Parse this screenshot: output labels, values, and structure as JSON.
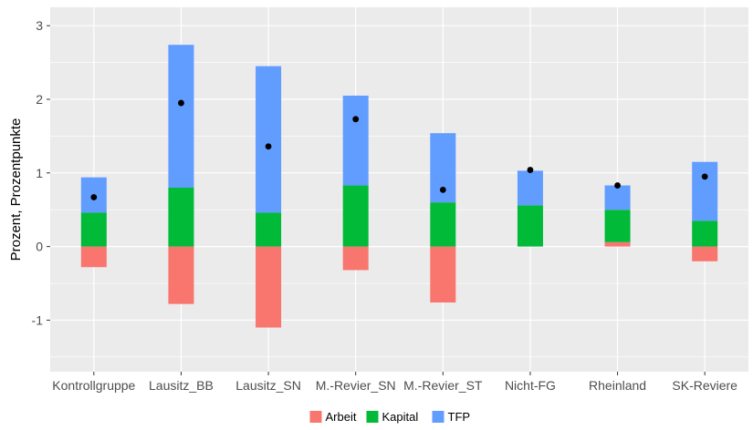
{
  "chart_data": {
    "type": "bar",
    "stacked": true,
    "title": "",
    "xlabel": "",
    "ylabel": "Prozent, Prozentpunkte",
    "ylim": [
      -1.7,
      3.25
    ],
    "yticks": [
      -1,
      0,
      1,
      2,
      3
    ],
    "ytick_labels": [
      "-1",
      "0",
      "1",
      "2",
      "3"
    ],
    "grid": true,
    "legend_position": "bottom",
    "categories": [
      "Kontrollgruppe",
      "Lausitz_BB",
      "Lausitz_SN",
      "M.-Revier_SN",
      "M.-Revier_ST",
      "Nicht-FG",
      "Rheinland",
      "SK-Reviere"
    ],
    "series": [
      {
        "name": "Arbeit",
        "color": "#F8766D",
        "values": [
          -0.28,
          -0.78,
          -1.1,
          -0.32,
          -0.76,
          0.0,
          0.06,
          -0.2
        ]
      },
      {
        "name": "Kapital",
        "color": "#00BA38",
        "values": [
          0.46,
          0.8,
          0.46,
          0.83,
          0.6,
          0.56,
          0.44,
          0.35
        ]
      },
      {
        "name": "TFP",
        "color": "#619CFF",
        "values": [
          0.48,
          1.94,
          1.99,
          1.22,
          0.94,
          0.47,
          0.33,
          0.8
        ]
      }
    ],
    "points": {
      "color": "#000000",
      "values": [
        0.67,
        1.95,
        1.36,
        1.73,
        0.77,
        1.04,
        0.83,
        0.95
      ]
    },
    "background": "#EBEBEB",
    "gridline_color": "#FFFFFF"
  }
}
